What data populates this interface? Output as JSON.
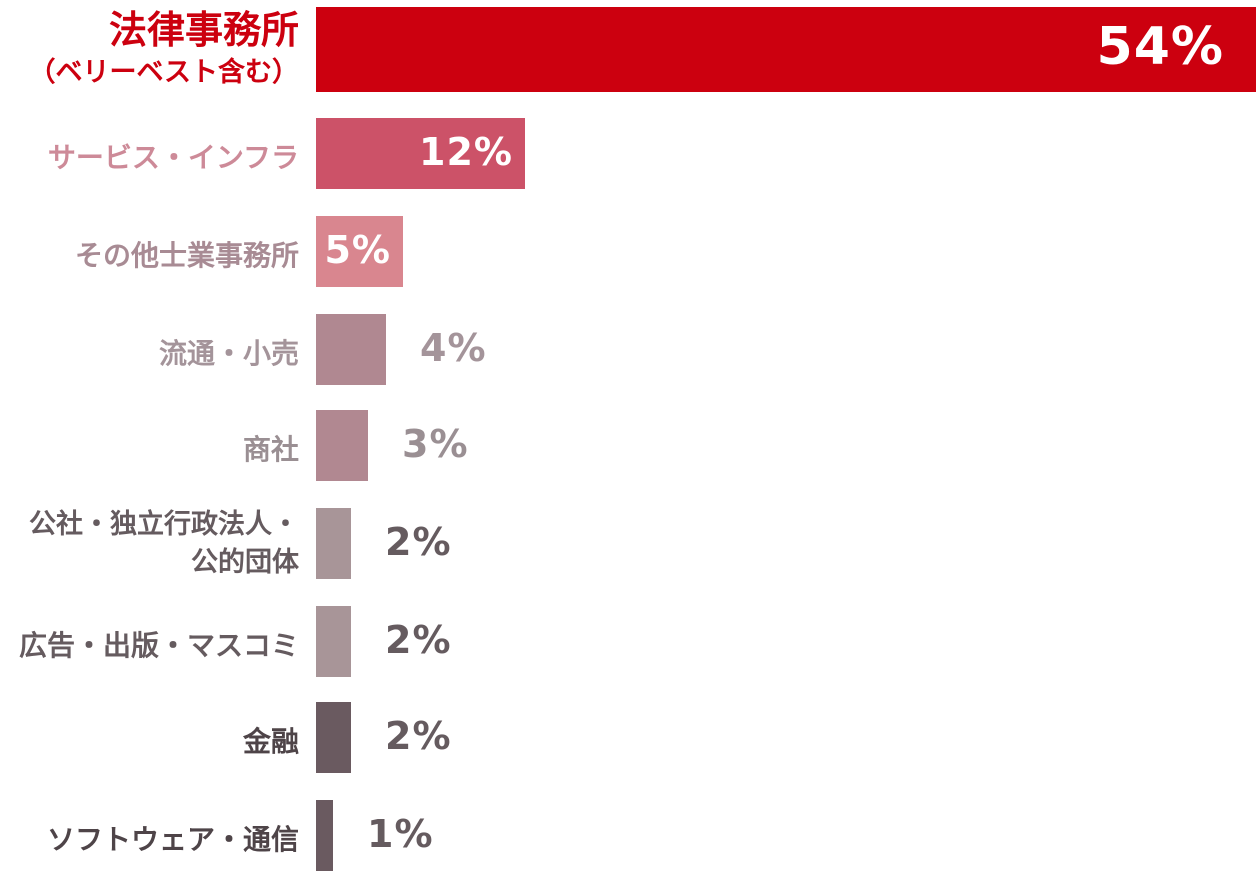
{
  "chart_data": {
    "type": "bar",
    "orientation": "horizontal",
    "unit": "%",
    "xlim": [
      0,
      54
    ],
    "categories": [
      {
        "lines": [
          "法律事務所",
          "（ベリーベスト含む）"
        ],
        "value": 54,
        "label": "54%",
        "bar_color": "#cc000f",
        "label_color": "#cc000f",
        "value_color": "#ffffff",
        "value_inside": true
      },
      {
        "lines": [
          "サービス・インフラ"
        ],
        "value": 12,
        "label": "12%",
        "bar_color": "#cc5268",
        "label_color": "#cd8a98",
        "value_color": "#ffffff",
        "value_inside": true
      },
      {
        "lines": [
          "その他士業事務所"
        ],
        "value": 5,
        "label": "5%",
        "bar_color": "#d9868f",
        "label_color": "#a88b94",
        "value_color": "#ffffff",
        "value_inside": true
      },
      {
        "lines": [
          "流通・小売"
        ],
        "value": 4,
        "label": "4%",
        "bar_color": "#b08891",
        "label_color": "#a4949a",
        "value_color": "#a4949a",
        "value_inside": false
      },
      {
        "lines": [
          "商社"
        ],
        "value": 3,
        "label": "3%",
        "bar_color": "#b18891",
        "label_color": "#9a8f93",
        "value_color": "#9a8f93",
        "value_inside": false
      },
      {
        "lines": [
          "公社・独立行政法人・",
          "公的団体"
        ],
        "value": 2,
        "label": "2%",
        "bar_color": "#a89598",
        "label_color": "#655b5f",
        "value_color": "#655b5f",
        "value_inside": false
      },
      {
        "lines": [
          "広告・出版・マスコミ"
        ],
        "value": 2,
        "label": "2%",
        "bar_color": "#a89598",
        "label_color": "#655b5f",
        "value_color": "#655b5f",
        "value_inside": false
      },
      {
        "lines": [
          "金融"
        ],
        "value": 2,
        "label": "2%",
        "bar_color": "#6a5a60",
        "label_color": "#4e4448",
        "value_color": "#655b5f",
        "value_inside": false
      },
      {
        "lines": [
          "ソフトウェア・通信"
        ],
        "value": 1,
        "label": "1%",
        "bar_color": "#6a5a60",
        "label_color": "#4e4448",
        "value_color": "#655b5f",
        "value_inside": false
      }
    ]
  }
}
